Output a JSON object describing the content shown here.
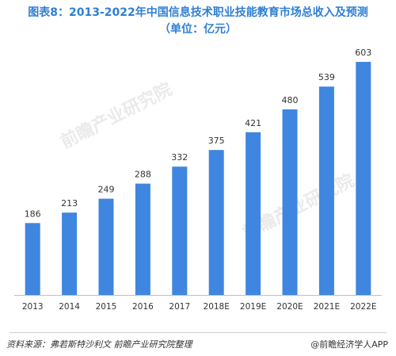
{
  "title_line1": "图表8：2013-2022年中国信息技术职业技能教育市场总收入及预测",
  "title_line2": "（单位：亿元）",
  "watermark": "前瞻产业研究院",
  "source": "资料来源：弗若斯特沙利文  前瞻产业研究院整理",
  "credit": "@前瞻经济学人APP",
  "colors": {
    "bar": "#3f86e0",
    "title": "#2f7fd3",
    "axis": "#bfbfbf"
  },
  "chart_data": {
    "type": "bar",
    "categories": [
      "2013",
      "2014",
      "2015",
      "2016",
      "2017",
      "2018E",
      "2019E",
      "2020E",
      "2021E",
      "2022E"
    ],
    "values": [
      186,
      213,
      249,
      288,
      332,
      375,
      421,
      480,
      539,
      603
    ],
    "title": "图表8：2013-2022年中国信息技术职业技能教育市场总收入及预测",
    "ylim": [
      0,
      640
    ],
    "grid": false,
    "legend": "none"
  }
}
